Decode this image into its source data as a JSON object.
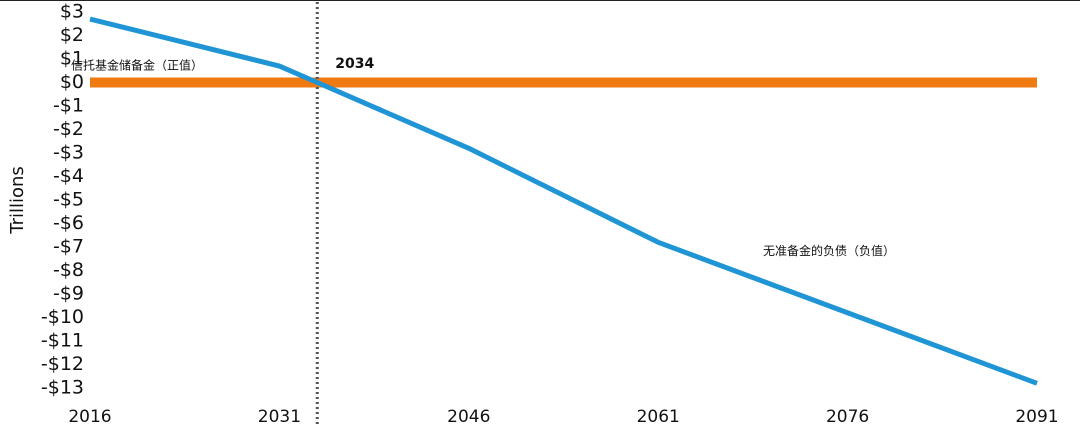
{
  "chart_data": {
    "type": "line",
    "y_axis_label": "Trillions",
    "x": [
      2016,
      2031,
      2034,
      2046,
      2061,
      2091
    ],
    "series": [
      {
        "color": "#1f95d6",
        "values": [
          2.7,
          0.7,
          0,
          -2.8,
          -6.8,
          -12.8
        ]
      }
    ],
    "xlim": [
      2016,
      2091
    ],
    "xticks": [
      2016,
      2031,
      2046,
      2061,
      2076,
      2091
    ],
    "ylim": [
      -13,
      3
    ],
    "yticks": [
      {
        "value": 3,
        "label": "$3"
      },
      {
        "value": 2,
        "label": "$2"
      },
      {
        "value": 1,
        "label": "$1"
      },
      {
        "value": 0,
        "label": "$0"
      },
      {
        "value": -1,
        "label": "-$1"
      },
      {
        "value": -2,
        "label": "-$2"
      },
      {
        "value": -3,
        "label": "-$3"
      },
      {
        "value": -4,
        "label": "-$4"
      },
      {
        "value": -5,
        "label": "-$5"
      },
      {
        "value": -6,
        "label": "-$6"
      },
      {
        "value": -7,
        "label": "-$7"
      },
      {
        "value": -8,
        "label": "-$8"
      },
      {
        "value": -9,
        "label": "-$9"
      },
      {
        "value": -10,
        "label": "-$10"
      },
      {
        "value": -11,
        "label": "-$11"
      },
      {
        "value": -12,
        "label": "-$12"
      },
      {
        "value": -13,
        "label": "-$13"
      }
    ],
    "reference_line": {
      "y": 0,
      "color": "#f07a12"
    },
    "vertical_marker": {
      "x": 2034,
      "label": "2034"
    },
    "annotations": [
      {
        "text": "信托基金储备金（正值）",
        "x": 2014.5,
        "y": 0.7
      },
      {
        "text": "无准备金的负债（负值）",
        "x": 2069.3,
        "y": -7.2
      }
    ]
  }
}
